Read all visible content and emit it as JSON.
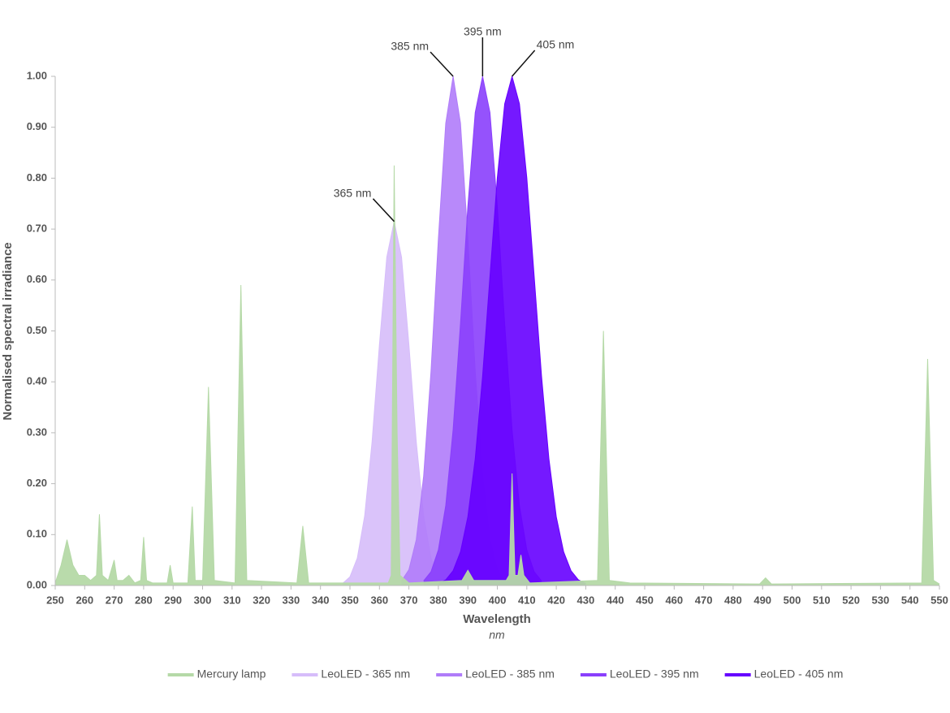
{
  "chart_data": {
    "type": "area",
    "x_label": "Wavelength",
    "x_unit": "nm",
    "y_label": "Normalised spectral irradiance",
    "xlim": [
      250,
      550
    ],
    "xticks": [
      250,
      260,
      270,
      280,
      290,
      300,
      310,
      320,
      330,
      340,
      350,
      360,
      370,
      380,
      390,
      400,
      410,
      420,
      430,
      440,
      450,
      460,
      470,
      480,
      490,
      500,
      510,
      520,
      530,
      540,
      550
    ],
    "ylim": [
      0,
      1
    ],
    "yticks": [
      {
        "value": 0,
        "label": "0.00"
      },
      {
        "value": 0.1,
        "label": "0.10"
      },
      {
        "value": 0.2,
        "label": "0.20"
      },
      {
        "value": 0.3,
        "label": "0.30"
      },
      {
        "value": 0.4,
        "label": "0.40"
      },
      {
        "value": 0.5,
        "label": "0.50"
      },
      {
        "value": 0.6,
        "label": "0.60"
      },
      {
        "value": 0.7,
        "label": "0.70"
      },
      {
        "value": 0.8,
        "label": "0.80"
      },
      {
        "value": 0.9,
        "label": "0.90"
      },
      {
        "value": 1,
        "label": "1.00"
      }
    ],
    "grid": false,
    "legend": "bottom",
    "series": [
      {
        "name": "LeoLED - 365 nm",
        "color": "#d6bdfa",
        "x": [
          347.5,
          350,
          352.5,
          355,
          357.5,
          360,
          362.5,
          365,
          367.5,
          370,
          372.5,
          375,
          377.5,
          380,
          382.5
        ],
        "values": [
          0.004,
          0.017,
          0.054,
          0.137,
          0.282,
          0.473,
          0.645,
          0.715,
          0.645,
          0.473,
          0.282,
          0.137,
          0.054,
          0.017,
          0.004
        ]
      },
      {
        "name": "LeoLED - 385 nm",
        "color": "#b07cf9",
        "x": [
          367.5,
          370,
          372.5,
          375,
          377.5,
          380,
          382.5,
          385,
          387.5,
          390,
          392.5,
          395,
          397.5,
          400,
          402.5
        ],
        "values": [
          0.009,
          0.031,
          0.09,
          0.215,
          0.421,
          0.681,
          0.908,
          1,
          0.908,
          0.681,
          0.421,
          0.215,
          0.09,
          0.031,
          0.009
        ]
      },
      {
        "name": "LeoLED - 395 nm",
        "color": "#8a3ffc",
        "x": [
          375,
          377.5,
          380,
          382.5,
          385,
          387.5,
          390,
          392.5,
          395,
          397.5,
          400,
          402.5,
          405,
          407.5,
          410,
          412.5,
          415
        ],
        "values": [
          0.009,
          0.027,
          0.07,
          0.157,
          0.306,
          0.514,
          0.744,
          0.929,
          1,
          0.929,
          0.744,
          0.514,
          0.306,
          0.157,
          0.07,
          0.027,
          0.009
        ]
      },
      {
        "name": "LeoLED - 405 nm",
        "color": "#6600ff",
        "x": [
          380,
          382.5,
          385,
          387.5,
          390,
          392.5,
          395,
          397.5,
          400,
          402.5,
          405,
          407.5,
          410,
          412.5,
          415,
          417.5,
          420,
          422.5,
          425,
          427.5,
          430
        ],
        "values": [
          0.004,
          0.011,
          0.029,
          0.066,
          0.135,
          0.249,
          0.411,
          0.607,
          0.801,
          0.946,
          1,
          0.946,
          0.801,
          0.607,
          0.411,
          0.249,
          0.135,
          0.066,
          0.029,
          0.011,
          0.004
        ]
      },
      {
        "name": "Mercury lamp",
        "color": "#b5d9a7",
        "x": [
          250,
          252,
          254,
          256,
          258,
          260,
          262,
          264,
          265,
          266,
          268,
          270,
          271,
          273,
          275,
          277,
          279,
          280,
          281,
          283,
          288,
          289,
          290,
          295,
          296.5,
          297.5,
          300,
          302,
          304,
          311,
          313,
          315,
          332,
          334,
          336,
          363,
          364,
          365,
          366,
          367,
          370,
          388,
          390,
          392,
          403,
          404,
          405,
          406,
          407,
          408,
          409,
          411,
          434,
          436,
          438,
          445,
          489,
          491,
          493,
          544,
          546,
          548,
          550
        ],
        "values": [
          0.005,
          0.04,
          0.09,
          0.04,
          0.02,
          0.02,
          0.01,
          0.02,
          0.14,
          0.02,
          0.01,
          0.05,
          0.01,
          0.01,
          0.02,
          0.005,
          0.01,
          0.095,
          0.01,
          0.005,
          0.005,
          0.04,
          0.005,
          0.005,
          0.155,
          0.01,
          0.01,
          0.39,
          0.01,
          0.005,
          0.59,
          0.01,
          0.005,
          0.117,
          0.005,
          0.005,
          0.02,
          0.825,
          0.3,
          0.02,
          0.005,
          0.01,
          0.03,
          0.01,
          0.01,
          0.02,
          0.22,
          0.02,
          0.02,
          0.06,
          0.02,
          0.005,
          0.01,
          0.5,
          0.01,
          0.005,
          0.003,
          0.015,
          0.003,
          0.005,
          0.445,
          0.01,
          0.003
        ]
      }
    ],
    "annotations": [
      {
        "text": "365 nm",
        "x": 365,
        "y": 0.715
      },
      {
        "text": "385 nm",
        "x": 385,
        "y": 1
      },
      {
        "text": "395 nm",
        "x": 395,
        "y": 1
      },
      {
        "text": "405 nm",
        "x": 405,
        "y": 1
      }
    ]
  }
}
